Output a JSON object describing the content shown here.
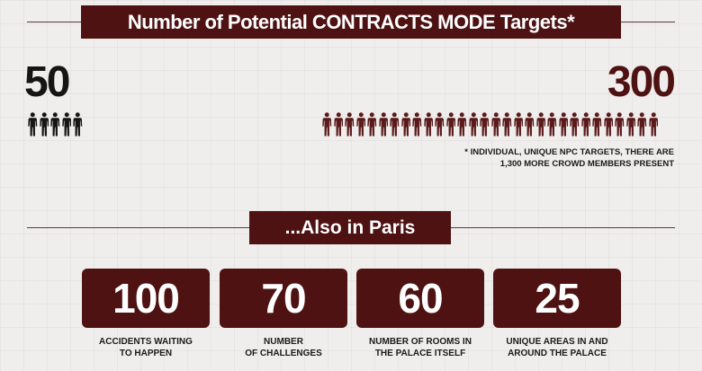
{
  "header": {
    "title": "Number of Potential CONTRACTS MODE Targets*"
  },
  "targets": {
    "old": {
      "value": "50",
      "figure_count": 5,
      "color": "#151515"
    },
    "new": {
      "value": "300",
      "figure_count": 30,
      "color": "#5a1a1b"
    },
    "footnote_line1": "* INDIVIDUAL, UNIQUE NPC TARGETS, THERE ARE",
    "footnote_line2": "1,300  MORE CROWD MEMBERS PRESENT"
  },
  "section2": {
    "title": "...Also in Paris"
  },
  "stats": [
    {
      "value": "100",
      "line1": "ACCIDENTS WAITING",
      "line2": "TO HAPPEN"
    },
    {
      "value": "70",
      "line1": "NUMBER",
      "line2": "OF CHALLENGES"
    },
    {
      "value": "60",
      "line1": "NUMBER OF ROOMS IN",
      "line2": "THE PALACE ITSELF"
    },
    {
      "value": "25",
      "line1": "UNIQUE AREAS IN AND",
      "line2": "AROUND THE PALACE"
    }
  ],
  "colors": {
    "accent": "#4e1213",
    "background": "#efeeec"
  },
  "icons": {
    "person": "person-icon"
  }
}
